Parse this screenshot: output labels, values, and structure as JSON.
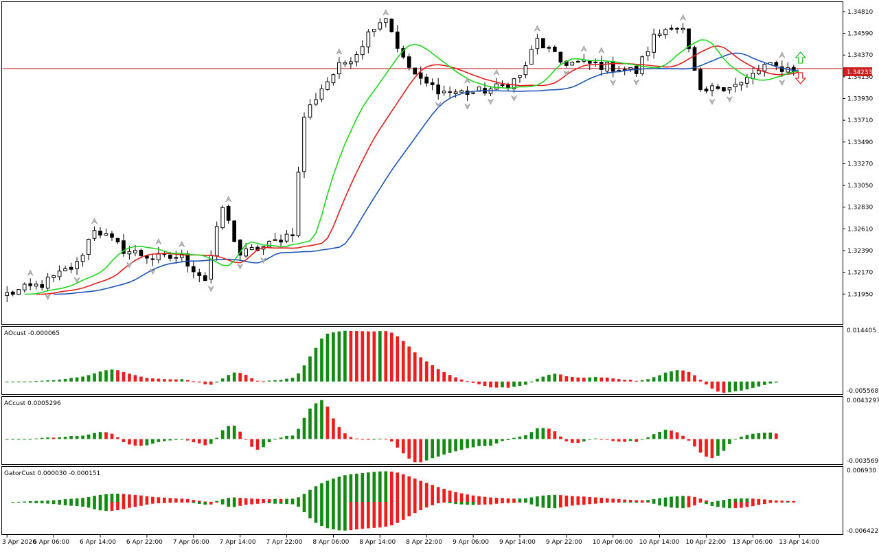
{
  "chart_data": {
    "type": "candlestick",
    "instrument_price_axis": {
      "ticks": [
        "1.34810",
        "1.34590",
        "1.34370",
        "1.34150",
        "1.33930",
        "1.33710",
        "1.33490",
        "1.33270",
        "1.33050",
        "1.32830",
        "1.32610",
        "1.32390",
        "1.32170",
        "1.31950"
      ],
      "range": [
        1.3166,
        1.349
      ],
      "current_price": "1.34233",
      "current_price_value": 1.34233
    },
    "time_axis": {
      "labels": [
        "3 Apr 2026",
        "6 Apr 06:00",
        "6 Apr 14:00",
        "6 Apr 22:00",
        "7 Apr 06:00",
        "7 Apr 14:00",
        "7 Apr 22:00",
        "8 Apr 06:00",
        "8 Apr 14:00",
        "8 Apr 22:00",
        "9 Apr 06:00",
        "9 Apr 14:00",
        "9 Apr 22:00",
        "10 Apr 06:00",
        "10 Apr 14:00",
        "10 Apr 22:00",
        "13 Apr 06:00",
        "13 Apr 14:00"
      ],
      "bars_per_label": 8,
      "total_bars": 136
    },
    "price_anchors": [
      [
        0,
        1.3195
      ],
      [
        6,
        1.3205
      ],
      [
        12,
        1.3225
      ],
      [
        15,
        1.3262
      ],
      [
        20,
        1.324
      ],
      [
        25,
        1.3232
      ],
      [
        30,
        1.3232
      ],
      [
        34,
        1.321
      ],
      [
        37,
        1.3283
      ],
      [
        40,
        1.3235
      ],
      [
        45,
        1.3245
      ],
      [
        49,
        1.3258
      ],
      [
        51,
        1.3375
      ],
      [
        54,
        1.3404
      ],
      [
        57,
        1.3425
      ],
      [
        60,
        1.344
      ],
      [
        63,
        1.3468
      ],
      [
        65,
        1.3476
      ],
      [
        68,
        1.3432
      ],
      [
        71,
        1.341
      ],
      [
        75,
        1.34
      ],
      [
        80,
        1.3399
      ],
      [
        85,
        1.3405
      ],
      [
        88,
        1.3415
      ],
      [
        91,
        1.3452
      ],
      [
        95,
        1.343
      ],
      [
        100,
        1.3428
      ],
      [
        105,
        1.3424
      ],
      [
        108,
        1.342
      ],
      [
        111,
        1.3455
      ],
      [
        114,
        1.3468
      ],
      [
        116,
        1.3462
      ],
      [
        119,
        1.3397
      ],
      [
        122,
        1.3405
      ],
      [
        126,
        1.3408
      ],
      [
        130,
        1.3426
      ],
      [
        133,
        1.3424
      ],
      [
        135,
        1.3423
      ]
    ],
    "alligator": {
      "jaw_color": "#1e54b7",
      "teeth_color": "#e01e1e",
      "lips_color": "#1ed61e",
      "jaw_period": 13,
      "teeth_period": 8,
      "lips_period": 5,
      "jaw_shift": 8,
      "teeth_shift": 5,
      "lips_shift": 3
    },
    "fractal_up_color": "#26b926",
    "fractal_down_color": "#e01e1e",
    "panes": [
      {
        "name": "AOcust",
        "label": "AOcust -0.000065",
        "ymax": "0.014405",
        "ymin": "-0.005568",
        "max": 0.014405,
        "min": -0.005568
      },
      {
        "name": "ACcust",
        "label": "ACcust 0.0005296",
        "ymax": "0.0043297",
        "ymin": "-0.0035691",
        "max": 0.0043297,
        "min": -0.0035691
      },
      {
        "name": "GatorCust",
        "label": "GatorCust 0.000030 -0.000151",
        "ymax": "0.006930",
        "ymin": "-0.006422",
        "max": 0.00693,
        "min": -0.006422
      }
    ],
    "colors": {
      "up": "#138a13",
      "down": "#ee1c1c",
      "price_line": "#cc1f1f",
      "price_label_bg": "#cc1f1f"
    }
  }
}
